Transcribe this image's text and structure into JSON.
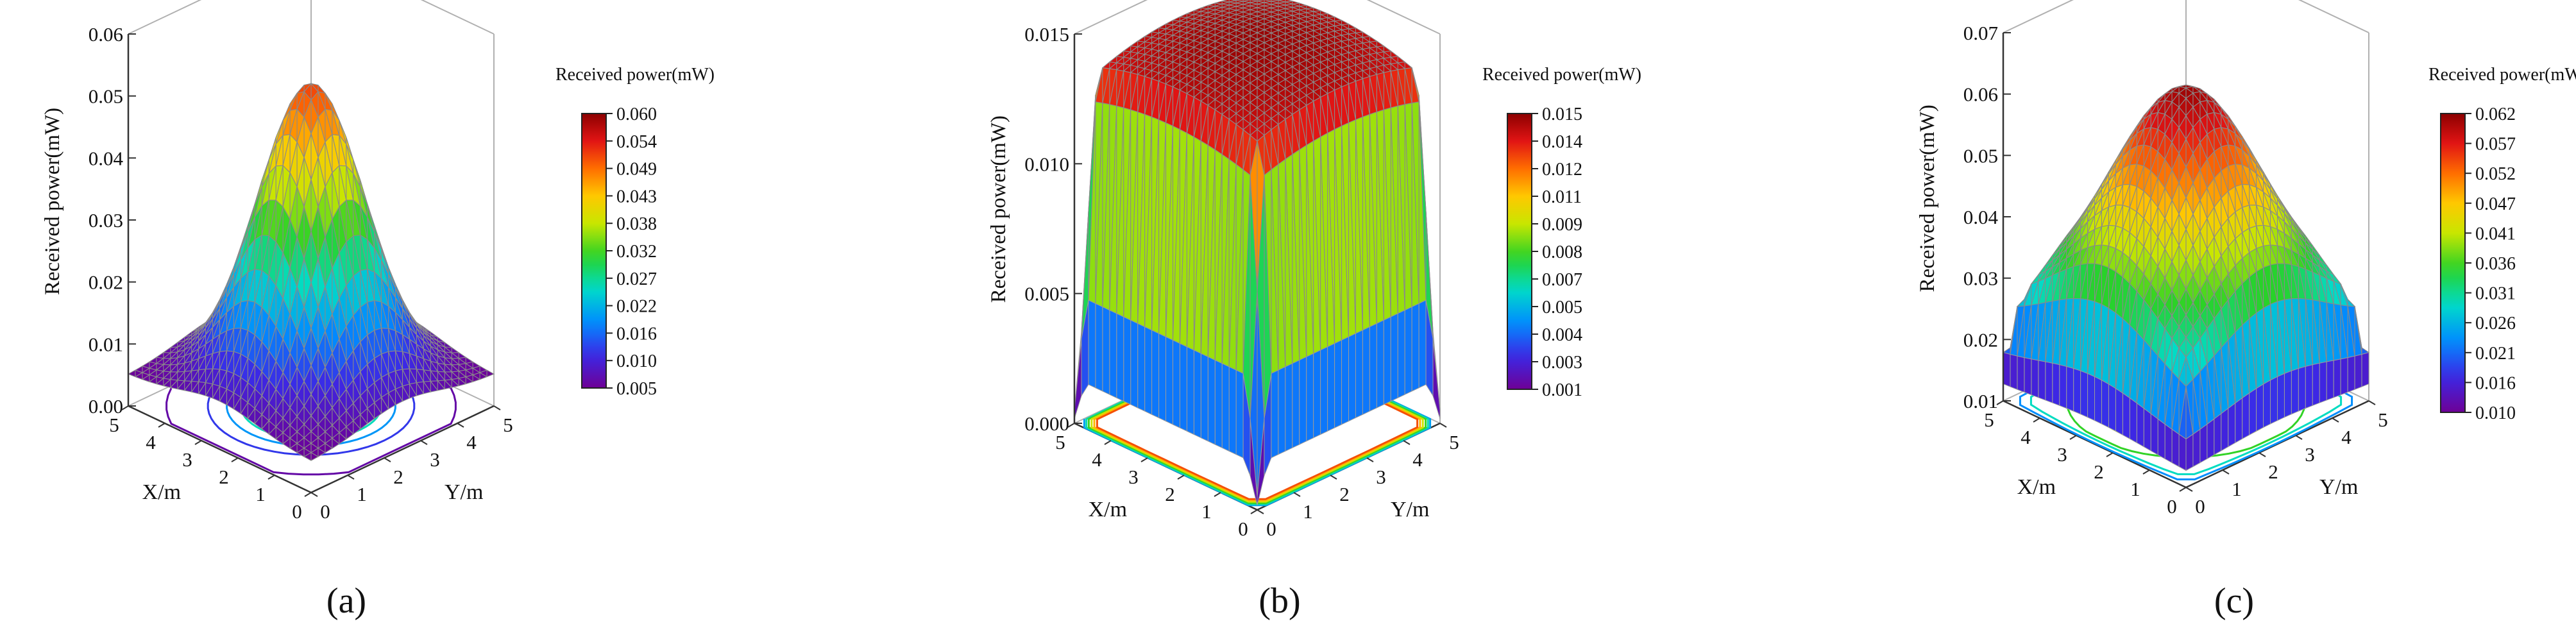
{
  "figure": {
    "panel_labels": [
      "(a)",
      "(b)",
      "(c)"
    ]
  },
  "chart_data": [
    {
      "type": "surface3d",
      "panel": "(a)",
      "z_axis_label": "Received power(mW)",
      "x_axis_label": "X/m",
      "y_axis_label": "Y/m",
      "x_ticks": [
        "0",
        "1",
        "2",
        "3",
        "4",
        "5"
      ],
      "y_ticks": [
        "0",
        "1",
        "2",
        "3",
        "4",
        "5"
      ],
      "z_ticks": [
        "0.00",
        "0.01",
        "0.02",
        "0.03",
        "0.04",
        "0.05",
        "0.06"
      ],
      "z_range": [
        0,
        0.06
      ],
      "colorbar_title": "Received power(mW)",
      "colorbar_ticks": [
        "0.060",
        "0.054",
        "0.049",
        "0.043",
        "0.038",
        "0.032",
        "0.027",
        "0.022",
        "0.016",
        "0.010",
        "0.005"
      ],
      "colorbar_range": [
        0.005,
        0.06
      ],
      "surface_shape": "gaussian_peak",
      "peak_value": 0.052,
      "edge_value": 0.008,
      "corner_value": 0.005
    },
    {
      "type": "surface3d",
      "panel": "(b)",
      "z_axis_label": "Received power(mW)",
      "x_axis_label": "X/m",
      "y_axis_label": "Y/m",
      "x_ticks": [
        "0",
        "1",
        "2",
        "3",
        "4",
        "5"
      ],
      "y_ticks": [
        "0",
        "1",
        "2",
        "3",
        "4",
        "5"
      ],
      "z_ticks": [
        "0.000",
        "0.005",
        "0.010",
        "0.015"
      ],
      "z_range": [
        0,
        0.015
      ],
      "colorbar_title": "Received power(mW)",
      "colorbar_ticks": [
        "0.015",
        "0.014",
        "0.012",
        "0.011",
        "0.009",
        "0.008",
        "0.007",
        "0.005",
        "0.004",
        "0.003",
        "0.001"
      ],
      "colorbar_range": [
        0.001,
        0.015
      ],
      "surface_shape": "plateau_with_edge_drop",
      "peak_value": 0.0148,
      "edge_value": 0.005,
      "corner_value": 0.0005
    },
    {
      "type": "surface3d",
      "panel": "(c)",
      "z_axis_label": "Received power(mW)",
      "x_axis_label": "X/m",
      "y_axis_label": "Y/m",
      "x_ticks": [
        "0",
        "1",
        "2",
        "3",
        "4",
        "5"
      ],
      "y_ticks": [
        "0",
        "1",
        "2",
        "3",
        "4",
        "5"
      ],
      "z_ticks": [
        "0.01",
        "0.02",
        "0.03",
        "0.04",
        "0.05",
        "0.06",
        "0.07"
      ],
      "z_range": [
        0.01,
        0.07
      ],
      "colorbar_title": "Received power(mW)",
      "colorbar_ticks": [
        "0.062",
        "0.057",
        "0.052",
        "0.047",
        "0.041",
        "0.036",
        "0.031",
        "0.026",
        "0.021",
        "0.016",
        "0.010"
      ],
      "colorbar_range": [
        0.01,
        0.062
      ],
      "surface_shape": "dome_with_edge_drop",
      "peak_value": 0.061,
      "edge_value": 0.024,
      "corner_value": 0.011
    }
  ]
}
